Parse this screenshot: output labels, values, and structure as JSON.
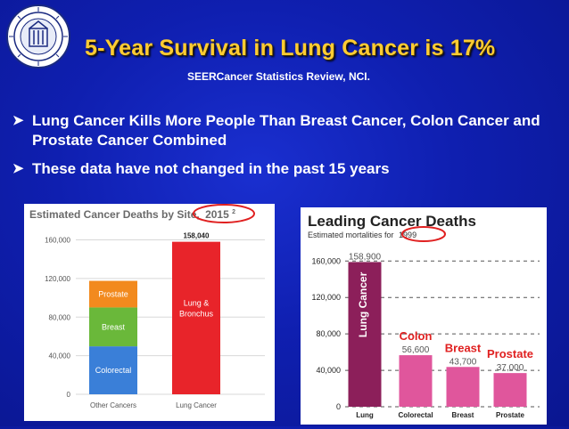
{
  "slide": {
    "title": "5-Year Survival in Lung Cancer is 17%",
    "subtitle": "SEERCancer Statistics Review, NCI.",
    "bullets": [
      "Lung Cancer Kills More People Than Breast Cancer, Colon Cancer and  Prostate Cancer Combined",
      "These data have not changed in the past 15 years"
    ],
    "colors": {
      "background": "#1428c8",
      "title": "#ffcc33",
      "highlight_circle": "#e02020"
    },
    "icons": [
      "seal-icon",
      "arrow-bullet-icon"
    ]
  },
  "chart_data": [
    {
      "type": "bar",
      "stacked": true,
      "title_prefix": "Estimated Cancer Deaths by Site,",
      "title_year": "2015",
      "title_superscript": "2",
      "categories": [
        "Other Cancers",
        "Lung Cancer"
      ],
      "series": [
        {
          "name": "Colorectal",
          "values": [
            49700,
            0
          ],
          "color": "#3a7fd8"
        },
        {
          "name": "Breast",
          "values": [
            40290,
            0
          ],
          "color": "#6ab83a"
        },
        {
          "name": "Prostate",
          "values": [
            27540,
            0
          ],
          "color": "#f28a1e"
        },
        {
          "name": "Lung & Bronchus",
          "values": [
            0,
            158040
          ],
          "color": "#e8242a"
        }
      ],
      "inner_labels": [
        {
          "category": "Lung Cancer",
          "lines": [
            "Lung &",
            "Bronchus"
          ]
        }
      ],
      "data_labels": [
        {
          "category": "Lung Cancer",
          "text": "158,040"
        }
      ],
      "yticks": [
        0,
        40000,
        80000,
        120000,
        160000
      ],
      "ytick_labels": [
        "0",
        "40,000",
        "80,000",
        "120,000",
        "160,000"
      ],
      "ylim": [
        0,
        166000
      ],
      "grid": true,
      "xlabel": "",
      "ylabel": ""
    },
    {
      "type": "bar",
      "title": "Leading Cancer Deaths",
      "subtitle_prefix": "Estimated mortalities for",
      "subtitle_year": "1999",
      "categories": [
        "Lung",
        "Colorectal",
        "Breast",
        "Prostate"
      ],
      "values": [
        158900,
        56600,
        43700,
        37000
      ],
      "value_labels": [
        "158,900",
        "56,600",
        "43,700",
        "37,000"
      ],
      "colors": [
        "#8c1f5a",
        "#e0569c",
        "#e0569c",
        "#e0569c"
      ],
      "overlay_labels": [
        {
          "category": "Lung",
          "text": "Lung Cancer",
          "color": "#ffffff",
          "vertical": true
        },
        {
          "category": "Colorectal",
          "text": "Colon",
          "color": "#e02020"
        },
        {
          "category": "Breast",
          "text": "Breast",
          "color": "#e02020"
        },
        {
          "category": "Prostate",
          "text": "Prostate",
          "color": "#e02020"
        }
      ],
      "yticks": [
        0,
        40000,
        80000,
        120000,
        160000
      ],
      "ytick_labels": [
        "0",
        "40,000",
        "80,000",
        "120,000",
        "160,000"
      ],
      "ylim": [
        0,
        172000
      ],
      "grid": true,
      "xlabel": "",
      "ylabel": ""
    }
  ]
}
